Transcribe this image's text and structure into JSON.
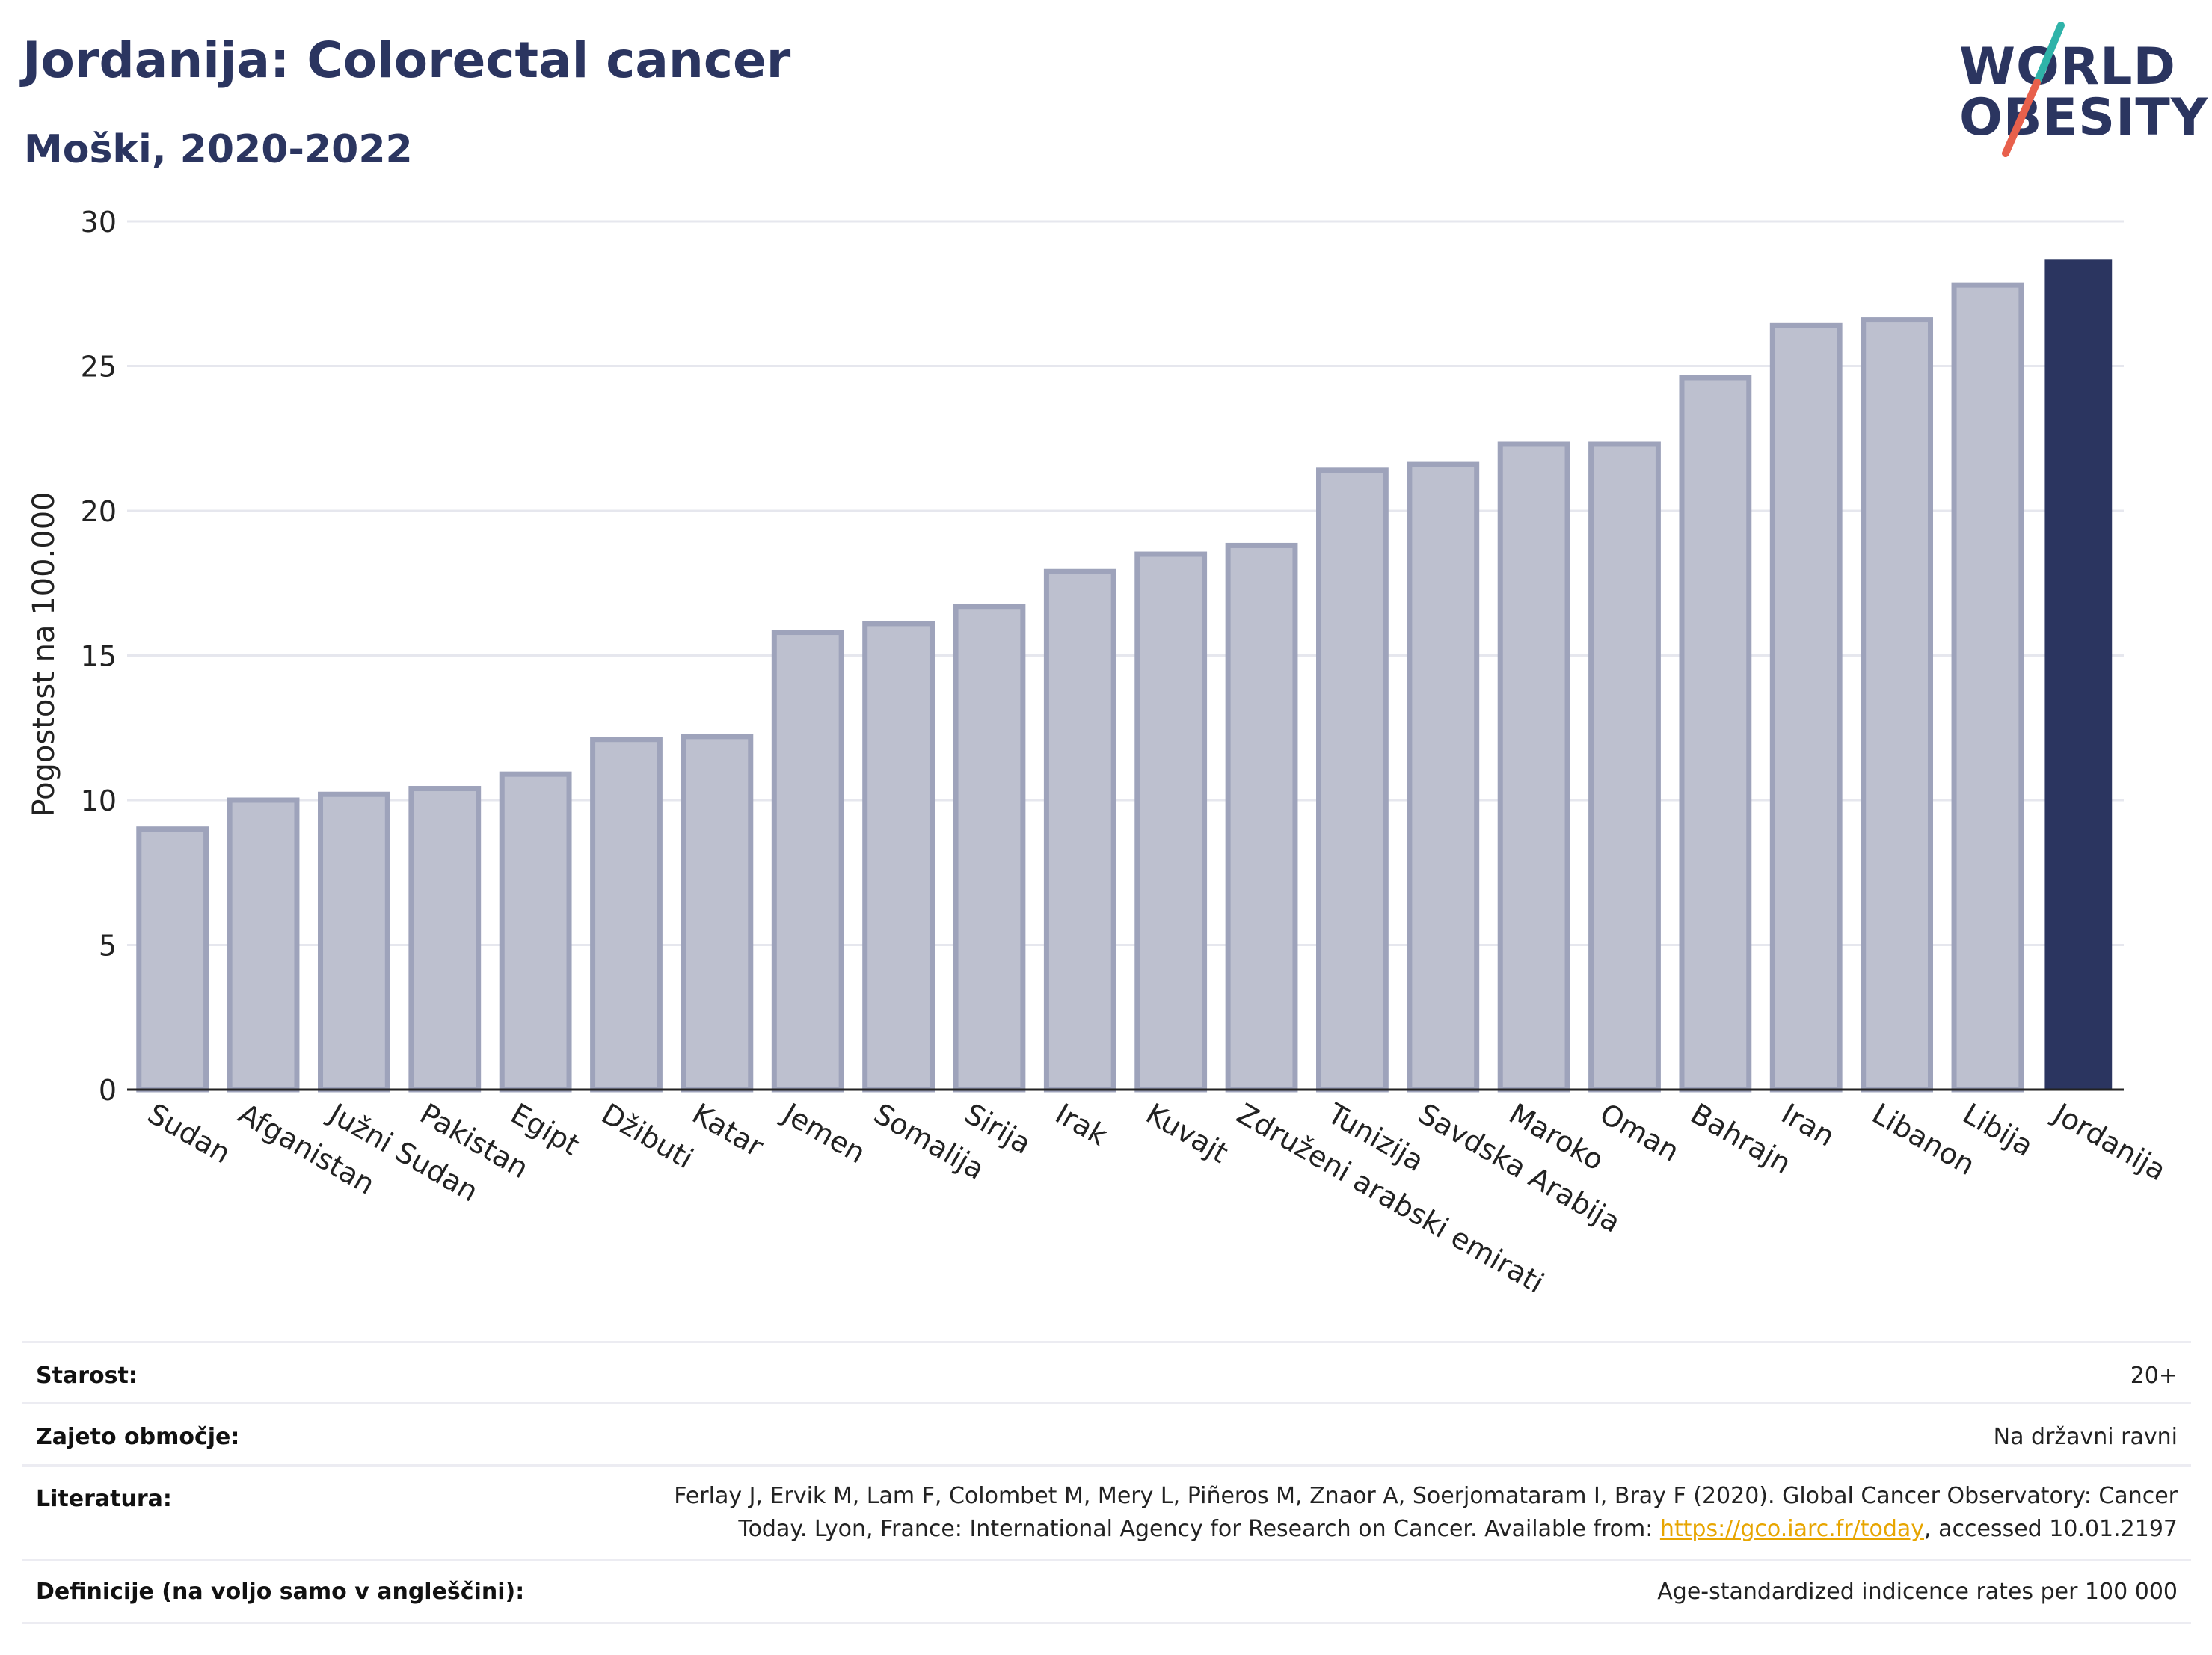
{
  "header": {
    "title": "Jordanija: Colorectal cancer",
    "subtitle": "Moški, 2020-2022"
  },
  "logo": {
    "line1": "WORLD",
    "line2": "OBESITY",
    "colors": {
      "text": "#2b3560",
      "stroke_top": "#2fb3a9",
      "stroke_bottom": "#e8604c"
    }
  },
  "chart_data": {
    "type": "bar",
    "title": "",
    "xlabel": "",
    "ylabel": "Pogostost na 100.000",
    "ylim": [
      0,
      30
    ],
    "yticks": [
      0,
      5,
      10,
      15,
      20,
      25,
      30
    ],
    "grid": true,
    "categories": [
      "Sudan",
      "Afganistan",
      "Južni Sudan",
      "Pakistan",
      "Egipt",
      "Džibuti",
      "Katar",
      "Jemen",
      "Somalija",
      "Sirija",
      "Irak",
      "Kuvajt",
      "Združeni arabski emirati",
      "Tunizija",
      "Savdska Arabija",
      "Maroko",
      "Oman",
      "Bahrajn",
      "Iran",
      "Libanon",
      "Libija",
      "Jordanija"
    ],
    "values": [
      9.0,
      10.0,
      10.2,
      10.4,
      10.9,
      12.1,
      12.2,
      15.8,
      16.1,
      16.7,
      17.9,
      18.5,
      18.8,
      21.4,
      21.6,
      22.3,
      22.3,
      24.6,
      26.4,
      26.6,
      27.8,
      28.7
    ],
    "highlight": "Jordanija",
    "colors": {
      "bar": "#bdc0cf",
      "bar_border": "#9ea3bb",
      "highlight": "#2b3560"
    }
  },
  "info": {
    "rows": [
      {
        "label": "Starost:",
        "value": "20+"
      },
      {
        "label": "Zajeto območje:",
        "value": "Na državni ravni"
      },
      {
        "label": "Literatura:",
        "value_line1": "Ferlay J, Ervik M, Lam F, Colombet M, Mery L, Piñeros M, Znaor A, Soerjomataram I, Bray F (2020). Global Cancer Observatory: Cancer",
        "value_line2_prefix": "Today. Lyon, France: International Agency for Research on Cancer. Available from: ",
        "link_text": "https://gco.iarc.fr/today",
        "value_line2_suffix": ", accessed 10.01.2197"
      },
      {
        "label": "Definicije (na voljo samo v angleščini):",
        "value": "Age-standardized indicence rates per 100 000"
      }
    ]
  }
}
